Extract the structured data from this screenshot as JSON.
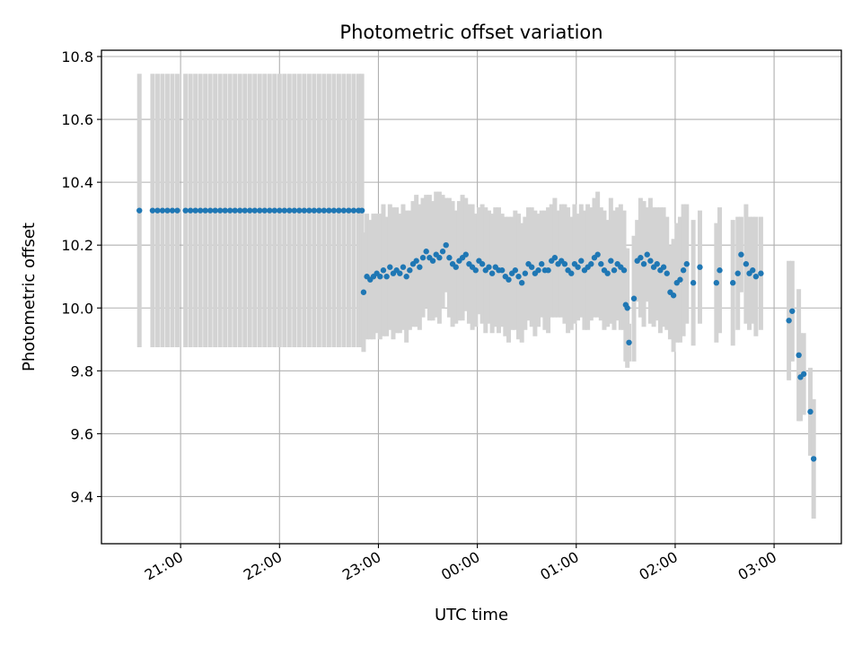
{
  "chart_data": {
    "type": "scatter",
    "title": "Photometric offset variation",
    "xlabel": "UTC time",
    "ylabel": "Photometric offset",
    "x_tick_labels": [
      "21:00",
      "22:00",
      "23:00",
      "00:00",
      "01:00",
      "02:00",
      "03:00"
    ],
    "x_ticks_hours": [
      21,
      22,
      23,
      24,
      25,
      26,
      27
    ],
    "x_range_hours": [
      20.2,
      27.68
    ],
    "y_tick_labels": [
      "9.4",
      "9.6",
      "9.8",
      "10.0",
      "10.2",
      "10.4",
      "10.6",
      "10.8"
    ],
    "y_ticks": [
      9.4,
      9.6,
      9.8,
      10.0,
      10.2,
      10.4,
      10.6,
      10.8
    ],
    "ylim": [
      9.25,
      10.82
    ],
    "grid": true,
    "point_color": "#1f77b4",
    "errorbar_color": "#d3d3d3",
    "series": [
      {
        "x": [
          "20:35",
          "20:43",
          "20:46",
          "20:49",
          "20:52",
          "20:55",
          "20:58",
          "21:03",
          "21:06",
          "21:09",
          "21:12",
          "21:15",
          "21:18",
          "21:21",
          "21:24",
          "21:27",
          "21:30",
          "21:33",
          "21:36",
          "21:39",
          "21:42",
          "21:45",
          "21:48",
          "21:51",
          "21:54",
          "21:57",
          "22:00",
          "22:03",
          "22:06",
          "22:09",
          "22:12",
          "22:15",
          "22:18",
          "22:21",
          "22:24",
          "22:27",
          "22:30",
          "22:33",
          "22:36",
          "22:39",
          "22:42",
          "22:45",
          "22:48",
          "22:50"
        ],
        "y": [
          10.31,
          10.31,
          10.31,
          10.31,
          10.31,
          10.31,
          10.31,
          10.31,
          10.31,
          10.31,
          10.31,
          10.31,
          10.31,
          10.31,
          10.31,
          10.31,
          10.31,
          10.31,
          10.31,
          10.31,
          10.31,
          10.31,
          10.31,
          10.31,
          10.31,
          10.31,
          10.31,
          10.31,
          10.31,
          10.31,
          10.31,
          10.31,
          10.31,
          10.31,
          10.31,
          10.31,
          10.31,
          10.31,
          10.31,
          10.31,
          10.31,
          10.31,
          10.31,
          10.31
        ],
        "err": [
          0.435,
          0.435,
          0.435,
          0.435,
          0.435,
          0.435,
          0.435,
          0.435,
          0.435,
          0.435,
          0.435,
          0.435,
          0.435,
          0.435,
          0.435,
          0.435,
          0.435,
          0.435,
          0.435,
          0.435,
          0.435,
          0.435,
          0.435,
          0.435,
          0.435,
          0.435,
          0.435,
          0.435,
          0.435,
          0.435,
          0.435,
          0.435,
          0.435,
          0.435,
          0.435,
          0.435,
          0.435,
          0.435,
          0.435,
          0.435,
          0.435,
          0.435,
          0.435,
          0.435
        ]
      },
      {
        "x": [
          "22:51",
          "22:53",
          "22:55",
          "22:57",
          "22:59",
          "23:01",
          "23:03",
          "23:05",
          "23:07",
          "23:09",
          "23:11",
          "23:13",
          "23:15",
          "23:17",
          "23:19",
          "23:21",
          "23:23",
          "23:25",
          "23:27",
          "23:29",
          "23:31",
          "23:33",
          "23:35",
          "23:37",
          "23:39",
          "23:41",
          "23:43",
          "23:45",
          "23:47",
          "23:49",
          "23:51",
          "23:53",
          "23:55",
          "23:57",
          "23:59",
          "00:01",
          "00:03",
          "00:05",
          "00:07",
          "00:09",
          "00:11",
          "00:13",
          "00:15",
          "00:17",
          "00:19",
          "00:21",
          "00:23",
          "00:25",
          "00:27",
          "00:29",
          "00:31",
          "00:33",
          "00:35",
          "00:37",
          "00:39",
          "00:41",
          "00:43",
          "00:45",
          "00:47",
          "00:49",
          "00:51",
          "00:53",
          "00:55",
          "00:57",
          "00:59",
          "01:01",
          "01:03",
          "01:05",
          "01:07",
          "01:09",
          "01:11",
          "01:13",
          "01:15",
          "01:17",
          "01:19",
          "01:21",
          "01:23",
          "01:25",
          "01:27",
          "01:29"
        ],
        "y": [
          10.05,
          10.1,
          10.09,
          10.1,
          10.11,
          10.1,
          10.12,
          10.1,
          10.13,
          10.11,
          10.12,
          10.11,
          10.13,
          10.1,
          10.12,
          10.14,
          10.15,
          10.13,
          10.16,
          10.18,
          10.16,
          10.15,
          10.17,
          10.16,
          10.18,
          10.2,
          10.16,
          10.14,
          10.13,
          10.15,
          10.16,
          10.17,
          10.14,
          10.13,
          10.12,
          10.15,
          10.14,
          10.12,
          10.13,
          10.11,
          10.13,
          10.12,
          10.12,
          10.1,
          10.09,
          10.11,
          10.12,
          10.1,
          10.08,
          10.11,
          10.14,
          10.13,
          10.11,
          10.12,
          10.14,
          10.12,
          10.12,
          10.15,
          10.16,
          10.14,
          10.15,
          10.14,
          10.12,
          10.11,
          10.14,
          10.13,
          10.15,
          10.12,
          10.13,
          10.14,
          10.16,
          10.17,
          10.14,
          10.12,
          10.11,
          10.15,
          10.12,
          10.14,
          10.13,
          10.12
        ],
        "err": [
          0.19,
          0.2,
          0.19,
          0.2,
          0.19,
          0.2,
          0.21,
          0.19,
          0.2,
          0.21,
          0.2,
          0.19,
          0.2,
          0.21,
          0.19,
          0.2,
          0.21,
          0.2,
          0.19,
          0.18,
          0.2,
          0.19,
          0.2,
          0.21,
          0.18,
          0.15,
          0.19,
          0.2,
          0.18,
          0.19,
          0.2,
          0.18,
          0.19,
          0.2,
          0.18,
          0.17,
          0.19,
          0.2,
          0.18,
          0.19,
          0.19,
          0.2,
          0.18,
          0.19,
          0.2,
          0.18,
          0.19,
          0.2,
          0.19,
          0.18,
          0.18,
          0.19,
          0.2,
          0.18,
          0.17,
          0.19,
          0.2,
          0.18,
          0.19,
          0.17,
          0.18,
          0.19,
          0.2,
          0.18,
          0.19,
          0.17,
          0.18,
          0.19,
          0.2,
          0.18,
          0.19,
          0.2,
          0.18,
          0.19,
          0.17,
          0.2,
          0.19,
          0.18,
          0.2,
          0.19
        ]
      },
      {
        "x": [
          "01:30",
          "01:31",
          "01:32",
          "01:35",
          "01:37",
          "01:39",
          "01:41",
          "01:43",
          "01:45",
          "01:47",
          "01:49",
          "01:51",
          "01:53",
          "01:55",
          "01:57",
          "01:59",
          "02:01",
          "02:03",
          "02:05",
          "02:07",
          "02:11",
          "02:15",
          "02:25",
          "02:27",
          "02:35",
          "02:38",
          "02:40",
          "02:43",
          "02:45",
          "02:47",
          "02:49",
          "02:52"
        ],
        "y": [
          10.01,
          10.0,
          9.89,
          10.03,
          10.15,
          10.16,
          10.14,
          10.17,
          10.15,
          10.13,
          10.14,
          10.12,
          10.13,
          10.11,
          10.05,
          10.04,
          10.08,
          10.09,
          10.12,
          10.14,
          10.08,
          10.13,
          10.08,
          10.12,
          10.08,
          10.11,
          10.17,
          10.14,
          10.11,
          10.12,
          10.1,
          10.11
        ],
        "err": [
          0.18,
          0.19,
          0.06,
          0.2,
          0.13,
          0.19,
          0.2,
          0.15,
          0.2,
          0.19,
          0.18,
          0.2,
          0.19,
          0.18,
          0.15,
          0.18,
          0.19,
          0.2,
          0.21,
          0.19,
          0.2,
          0.18,
          0.19,
          0.2,
          0.2,
          0.18,
          0.12,
          0.19,
          0.18,
          0.17,
          0.19,
          0.18
        ]
      },
      {
        "x": [
          "03:09",
          "03:11",
          "03:15",
          "03:16",
          "03:18",
          "03:22",
          "03:24"
        ],
        "y": [
          9.96,
          9.99,
          9.85,
          9.78,
          9.79,
          9.67,
          9.52
        ],
        "err": [
          0.19,
          0.16,
          0.21,
          0.14,
          0.13,
          0.14,
          0.19
        ]
      }
    ]
  }
}
